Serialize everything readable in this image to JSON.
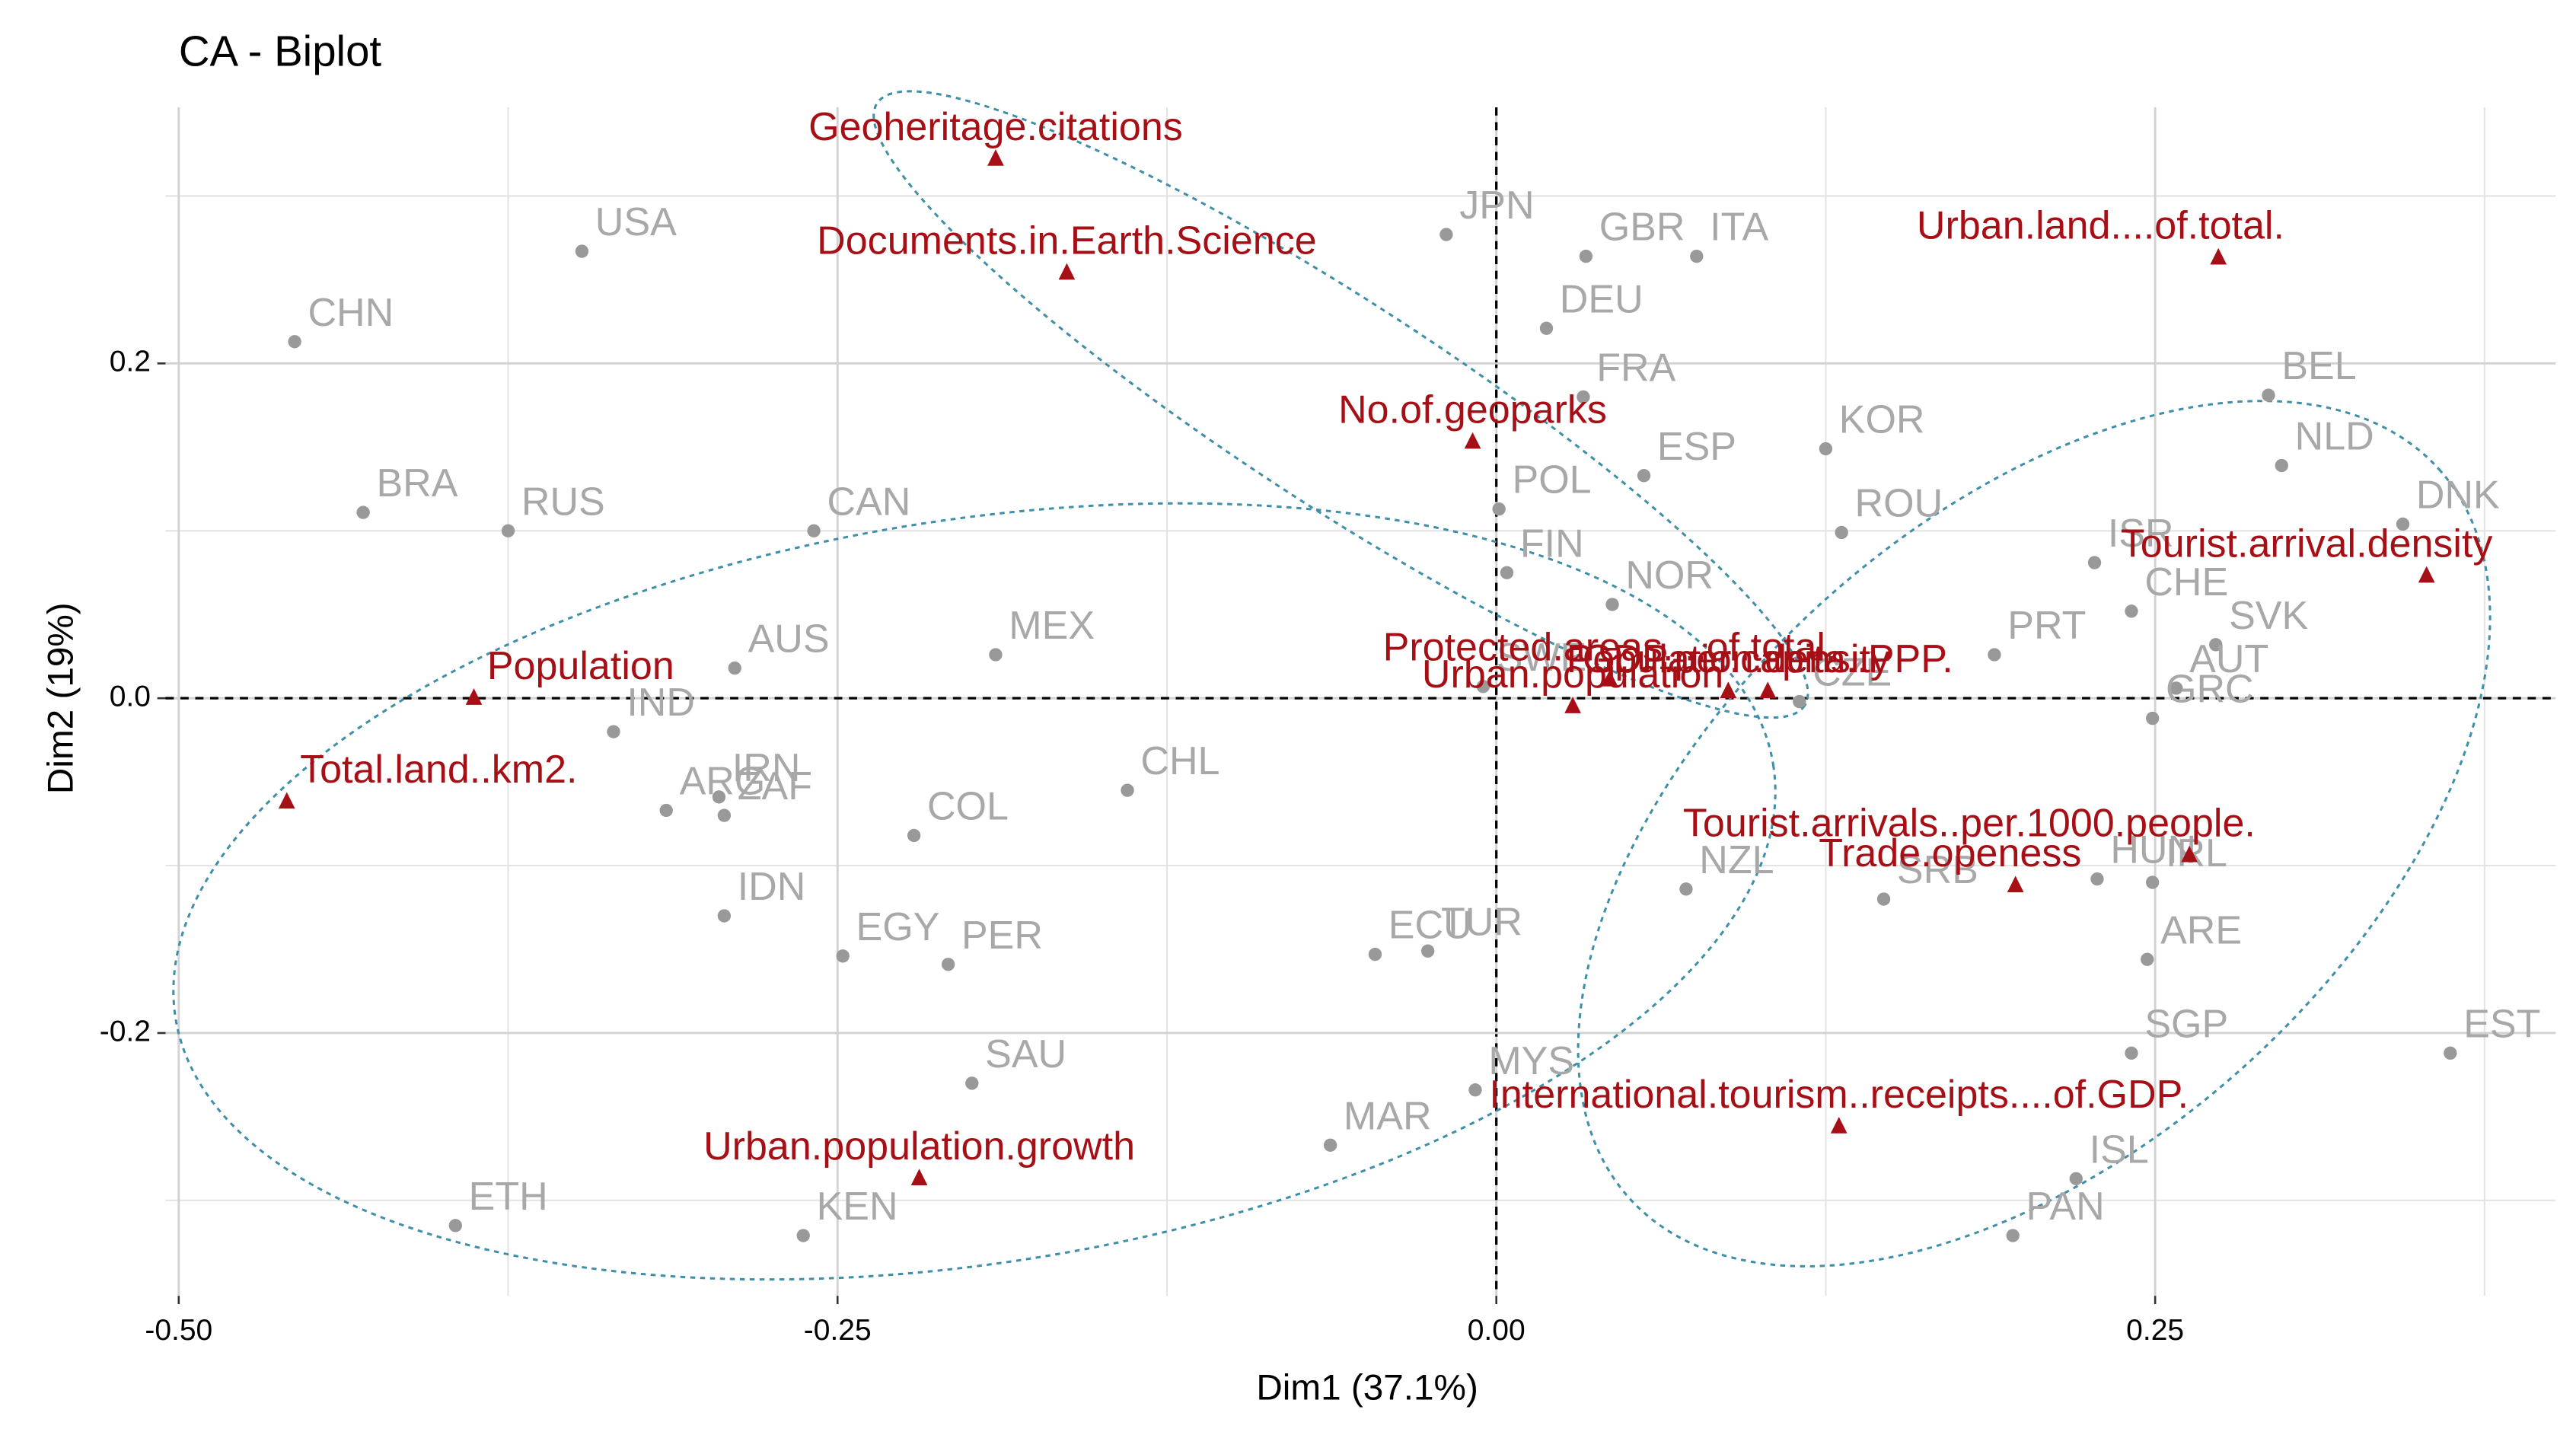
{
  "chart_data": {
    "type": "biplot",
    "title": "CA - Biplot",
    "xlabel": "Dim1 (37.1%)",
    "ylabel": "Dim2 (19%)",
    "xlim": [
      -0.505,
      0.402
    ],
    "ylim": [
      -0.357,
      0.353
    ],
    "xticks": [
      {
        "value": -0.5,
        "label": "-0.50"
      },
      {
        "value": -0.25,
        "label": "-0.25"
      },
      {
        "value": 0,
        "label": "0.00"
      },
      {
        "value": 0.25,
        "label": "0.25"
      }
    ],
    "yticks": [
      -0.2,
      {
        "value": 0,
        "label": "0.0"
      },
      0.2
    ],
    "xminor": [
      -0.375,
      -0.125,
      0.125,
      0.375
    ],
    "yminor": [
      -0.3,
      -0.1,
      0.1,
      0.3
    ],
    "grid": true,
    "rows": {
      "color": "#999999",
      "labels": [
        "CHN",
        "USA",
        "BRA",
        "RUS",
        "CAN",
        "AUS",
        "IND",
        "ARG",
        "IRN",
        "ZAF",
        "IDN",
        "EGY",
        "MEX",
        "COL",
        "CHL",
        "PER",
        "SAU",
        "ETH",
        "KEN",
        "MAR",
        "MYS",
        "ECU",
        "TUR",
        "JPN",
        "GBR",
        "ITA",
        "DEU",
        "FRA",
        "POL",
        "ESP",
        "FIN",
        "NOR",
        "SWE",
        "KOR",
        "ROU",
        "ISR",
        "PRT",
        "CHE",
        "SVK",
        "AUT",
        "CZE",
        "GRC",
        "HUN",
        "IRL",
        "SRB",
        "NZL",
        "ARE",
        "SGP",
        "ISL",
        "PAN",
        "EST",
        "BEL",
        "NLD",
        "DNK"
      ],
      "x": [
        -0.456,
        -0.347,
        -0.43,
        -0.375,
        -0.259,
        -0.289,
        -0.335,
        -0.315,
        -0.295,
        -0.293,
        -0.293,
        -0.248,
        -0.19,
        -0.221,
        -0.14,
        -0.208,
        -0.199,
        -0.395,
        -0.263,
        -0.063,
        -0.008,
        -0.046,
        -0.026,
        -0.019,
        0.034,
        0.076,
        0.019,
        0.033,
        0.001,
        0.056,
        0.004,
        0.044,
        -0.005,
        0.125,
        0.131,
        0.227,
        0.189,
        0.241,
        0.273,
        0.258,
        0.115,
        0.249,
        0.228,
        0.249,
        0.147,
        0.072,
        0.247,
        0.241,
        0.22,
        0.196,
        0.362,
        0.293,
        0.298,
        0.344
      ],
      "y": [
        0.213,
        0.267,
        0.111,
        0.1,
        0.1,
        0.018,
        -0.02,
        -0.067,
        -0.059,
        -0.07,
        -0.13,
        -0.154,
        0.026,
        -0.082,
        -0.055,
        -0.159,
        -0.23,
        -0.315,
        -0.321,
        -0.267,
        -0.234,
        -0.153,
        -0.151,
        0.277,
        0.264,
        0.264,
        0.221,
        0.18,
        0.113,
        0.133,
        0.075,
        0.056,
        0.007,
        0.149,
        0.099,
        0.081,
        0.026,
        0.052,
        0.032,
        0.006,
        -0.002,
        -0.012,
        -0.108,
        -0.11,
        -0.12,
        -0.114,
        -0.156,
        -0.212,
        -0.287,
        -0.321,
        -0.212,
        0.181,
        0.139,
        0.104
      ]
    },
    "columns": {
      "color": "#a50f15",
      "labels": [
        "Geoheritage.citations",
        "Documents.in.Earth.Science",
        "Urban.land....of.total.",
        "No.of.geoparks",
        "Tourist.arrival.density",
        "Population",
        "Total.land..km2.",
        "Protected.areas....of.total.",
        "Urban.population",
        "Population.density",
        "GDP.per.capita..PPP.",
        "Tourist.arrivals..per.1000.people.",
        "Trade.openess",
        "International.tourism..receipts....of.GDP.",
        "Urban.population.growth"
      ],
      "x": [
        -0.19,
        -0.163,
        0.274,
        -0.009,
        0.353,
        -0.388,
        -0.459,
        0.043,
        0.029,
        0.088,
        0.103,
        0.263,
        0.197,
        0.13,
        -0.219
      ],
      "y": [
        0.322,
        0.254,
        0.263,
        0.153,
        0.073,
        0.0,
        -0.062,
        0.011,
        -0.005,
        0.004,
        0.004,
        -0.094,
        -0.112,
        -0.256,
        -0.287
      ]
    }
  }
}
